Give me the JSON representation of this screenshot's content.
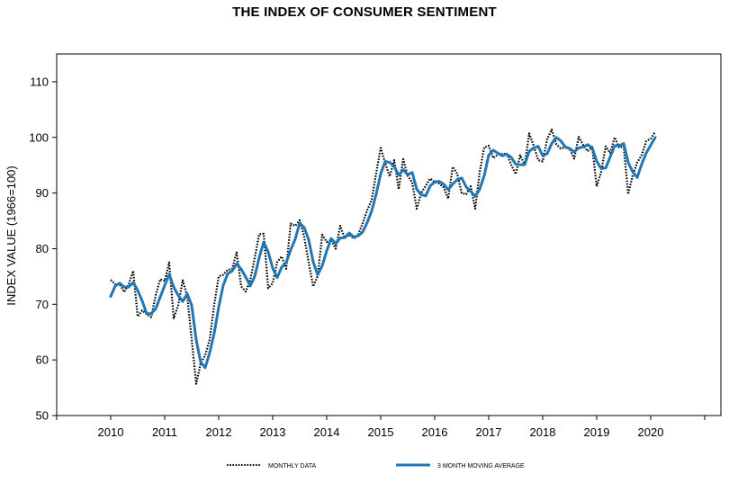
{
  "chart_data": {
    "type": "line",
    "title": "THE INDEX OF CONSUMER SENTIMENT",
    "xlabel": "",
    "ylabel": "INDEX VALUE (1966=100)",
    "ylim": [
      50,
      115
    ],
    "yticks": [
      50,
      60,
      70,
      80,
      90,
      100,
      110
    ],
    "xlim": [
      2009,
      2021.3
    ],
    "xticks": [
      2010,
      2011,
      2012,
      2013,
      2014,
      2015,
      2016,
      2017,
      2018,
      2019,
      2020
    ],
    "grid": false,
    "legend": "bottom",
    "series": [
      {
        "name": "MONTHLY DATA",
        "style": "dotted",
        "color": "#000000",
        "x_start": 2010.0,
        "step": 0.08333,
        "values": [
          74.4,
          73.6,
          73.6,
          72.2,
          73.6,
          76.0,
          67.8,
          68.9,
          68.2,
          67.7,
          71.6,
          74.5,
          74.2,
          77.5,
          67.5,
          69.8,
          74.3,
          71.5,
          63.7,
          55.7,
          59.4,
          60.8,
          63.7,
          69.9,
          75.0,
          75.3,
          76.2,
          76.4,
          79.3,
          73.2,
          72.3,
          74.3,
          78.3,
          82.6,
          82.7,
          72.9,
          73.8,
          77.6,
          78.6,
          76.4,
          84.5,
          84.1,
          85.1,
          82.1,
          77.5,
          73.2,
          75.1,
          82.5,
          81.2,
          81.6,
          80.0,
          84.1,
          81.9,
          82.5,
          81.8,
          82.5,
          84.6,
          86.9,
          88.8,
          93.6,
          98.1,
          95.4,
          93.0,
          95.9,
          90.7,
          96.1,
          93.1,
          91.9,
          87.2,
          90.0,
          91.3,
          92.6,
          92.0,
          91.7,
          91.0,
          89.0,
          94.7,
          93.5,
          90.0,
          89.8,
          91.2,
          87.2,
          93.8,
          98.2,
          98.5,
          96.3,
          96.9,
          97.0,
          97.1,
          95.1,
          93.4,
          96.8,
          95.1,
          100.7,
          98.5,
          95.9,
          95.7,
          99.7,
          101.4,
          98.8,
          98.0,
          98.2,
          97.9,
          96.2,
          100.1,
          98.6,
          97.5,
          98.3,
          91.2,
          93.8,
          98.4,
          97.2,
          100.0,
          98.2,
          98.4,
          89.8,
          93.2,
          95.5,
          96.8,
          99.3,
          99.8,
          101.0
        ]
      },
      {
        "name": "3 MONTH MOVING AVERAGE",
        "style": "solid",
        "color": "#1f77b4",
        "x_start": 2010.0,
        "step": 0.08333,
        "values": [
          71.4,
          73.3,
          73.8,
          73.1,
          73.1,
          73.9,
          72.5,
          70.6,
          68.3,
          68.3,
          69.2,
          71.3,
          73.4,
          75.4,
          73.1,
          71.6,
          70.5,
          71.9,
          69.8,
          63.6,
          59.6,
          58.6,
          61.3,
          64.8,
          69.5,
          73.4,
          75.5,
          76.0,
          77.3,
          76.3,
          74.9,
          73.3,
          75.0,
          78.4,
          81.2,
          79.4,
          76.5,
          74.8,
          76.7,
          77.5,
          79.8,
          81.7,
          84.6,
          83.8,
          81.6,
          77.6,
          75.3,
          76.9,
          79.6,
          81.8,
          80.9,
          81.9,
          82.0,
          82.8,
          82.1,
          82.3,
          83.0,
          84.7,
          86.8,
          89.8,
          93.5,
          95.7,
          95.5,
          94.8,
          93.2,
          94.2,
          93.3,
          93.7,
          90.7,
          89.7,
          89.5,
          91.3,
          92.0,
          92.1,
          91.6,
          90.6,
          91.6,
          92.4,
          92.7,
          91.1,
          90.3,
          89.4,
          90.7,
          93.1,
          96.8,
          97.7,
          97.2,
          96.7,
          97.0,
          96.4,
          95.2,
          95.1,
          95.1,
          97.5,
          98.1,
          98.4,
          96.7,
          97.1,
          98.9,
          100.0,
          99.4,
          98.3,
          98.0,
          97.4,
          98.1,
          98.3,
          98.7,
          98.1,
          95.7,
          94.4,
          94.5,
          96.5,
          98.5,
          98.5,
          98.9,
          95.5,
          93.8,
          92.8,
          95.2,
          97.2,
          98.6,
          100.0
        ]
      }
    ]
  }
}
